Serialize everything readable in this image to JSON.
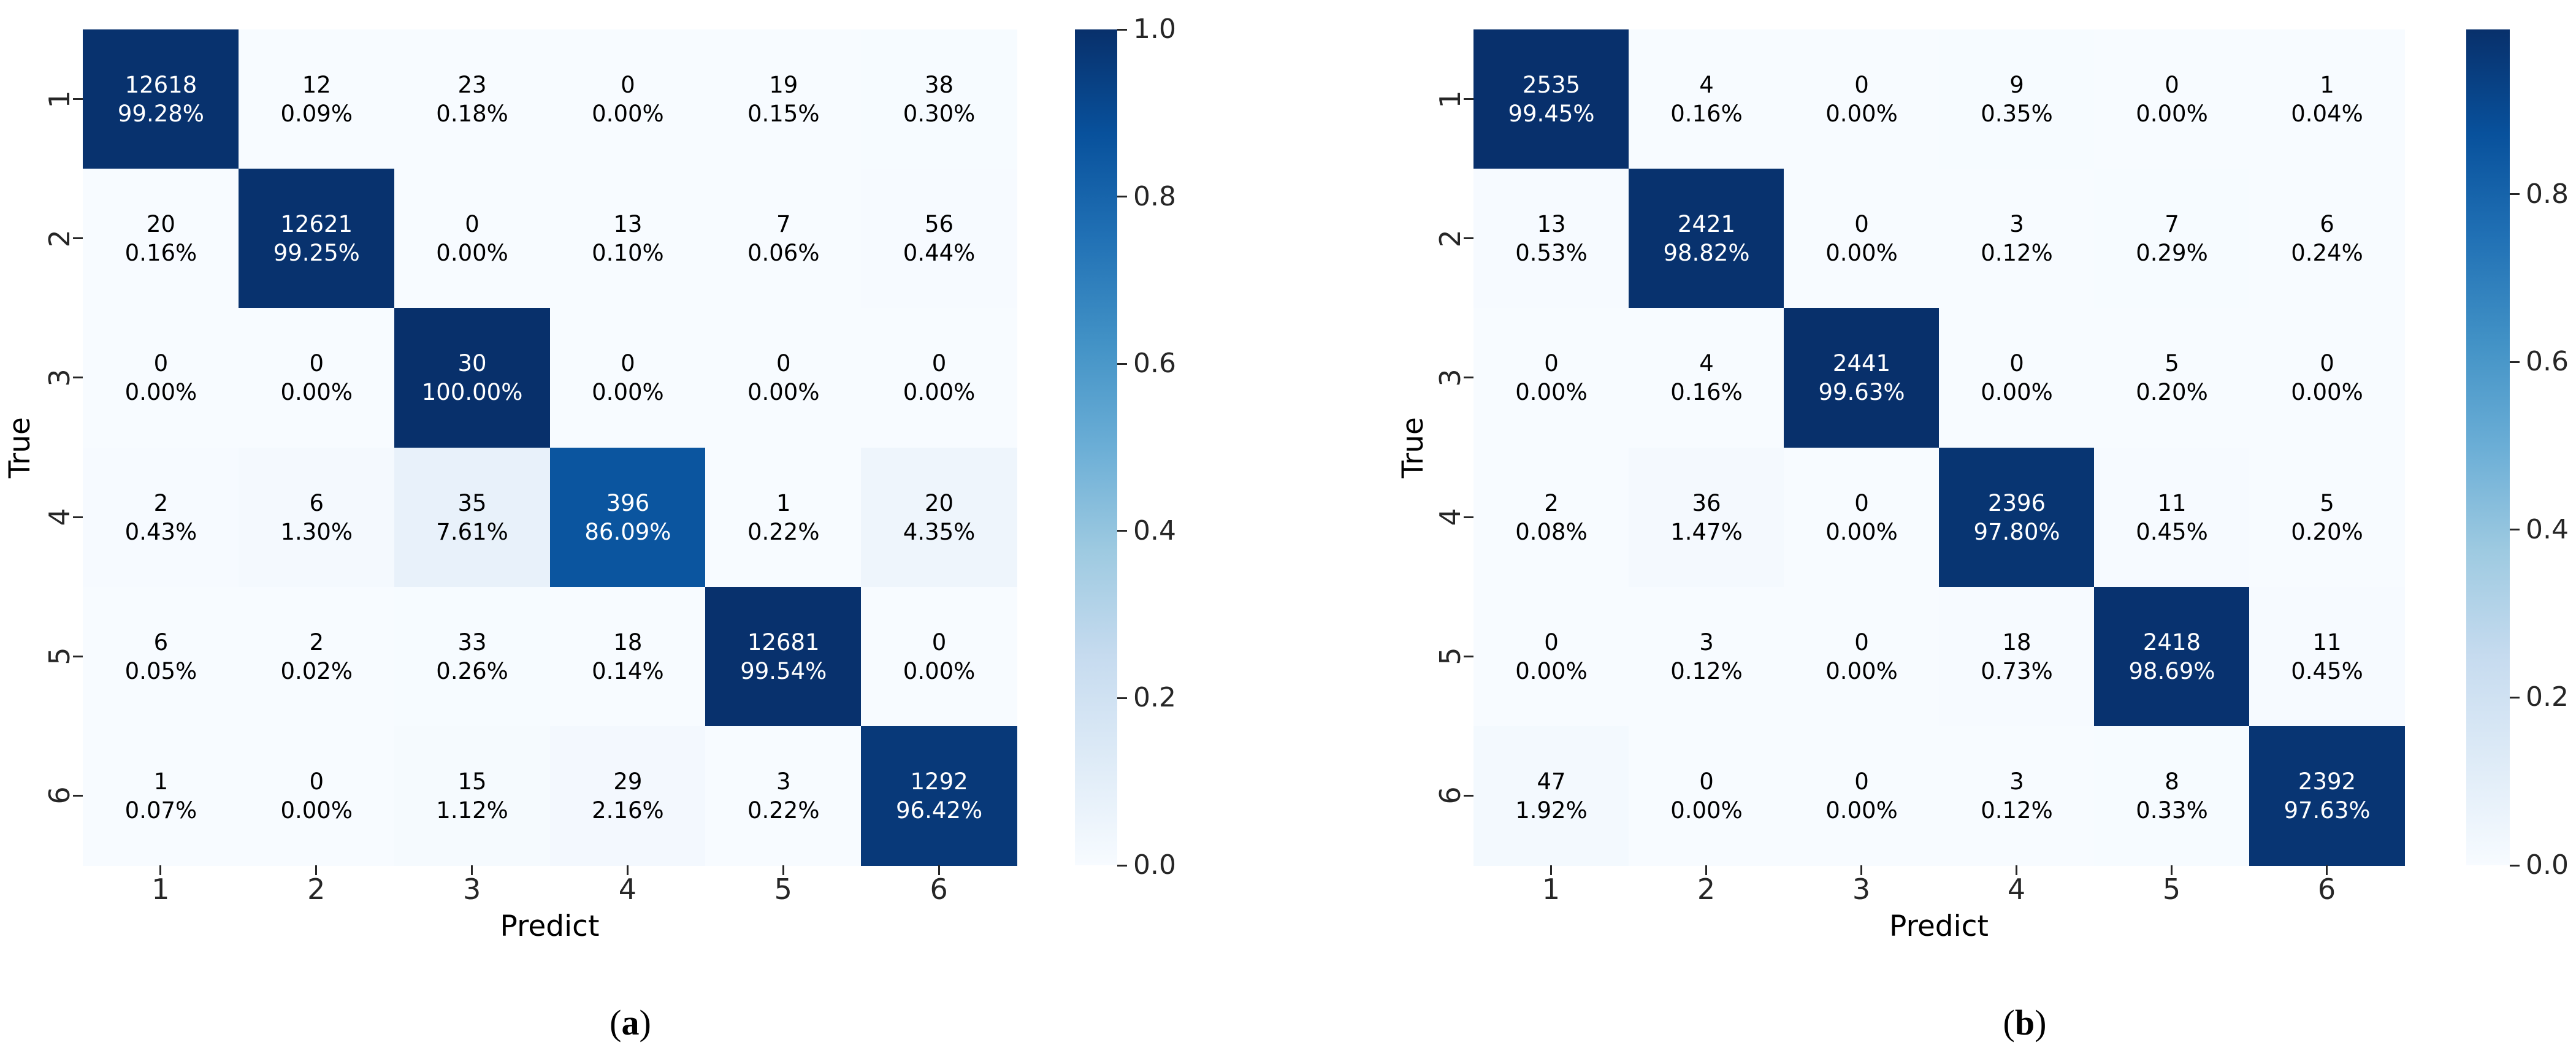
{
  "figure": {
    "description": "Two row-normalized confusion matrices rendered as Blues heatmaps",
    "colors": {
      "background": "#ffffff",
      "colormap": "Blues",
      "colormap_anchors": [
        "#f7fbff",
        "#deebf7",
        "#c6dbef",
        "#9ecae1",
        "#6baed6",
        "#4292c6",
        "#2171b5",
        "#08519c",
        "#08306b"
      ],
      "annot_text_dark": "#000000",
      "annot_text_light": "#ffffff",
      "tick_color": "#262626"
    }
  },
  "chart_data": [
    {
      "type": "heatmap",
      "panel": "a",
      "caption_open": "(",
      "caption_letter": "a",
      "caption_close": ")",
      "xlabel": "Predict",
      "ylabel": "True",
      "x_ticklabels": [
        "1",
        "2",
        "3",
        "4",
        "5",
        "6"
      ],
      "y_ticklabels": [
        "1",
        "2",
        "3",
        "4",
        "5",
        "6"
      ],
      "counts": [
        [
          12618,
          12,
          23,
          0,
          19,
          38
        ],
        [
          20,
          12621,
          0,
          13,
          7,
          56
        ],
        [
          0,
          0,
          30,
          0,
          0,
          0
        ],
        [
          2,
          6,
          35,
          396,
          1,
          20
        ],
        [
          6,
          2,
          33,
          18,
          12681,
          0
        ],
        [
          1,
          0,
          15,
          29,
          3,
          1292
        ]
      ],
      "row_percentages": [
        [
          99.28,
          0.09,
          0.18,
          0.0,
          0.15,
          0.3
        ],
        [
          0.16,
          99.25,
          0.0,
          0.1,
          0.06,
          0.44
        ],
        [
          0.0,
          0.0,
          100.0,
          0.0,
          0.0,
          0.0
        ],
        [
          0.43,
          1.3,
          7.61,
          86.09,
          0.22,
          4.35
        ],
        [
          0.05,
          0.02,
          0.26,
          0.14,
          99.54,
          0.0
        ],
        [
          0.07,
          0.0,
          1.12,
          2.16,
          0.22,
          96.42
        ]
      ],
      "vmin": 0.0,
      "vmax": 1.0,
      "colorbar_ticks": [
        1.0,
        0.8,
        0.6,
        0.4,
        0.2,
        0.0
      ],
      "legend_position": "right",
      "grid": false
    },
    {
      "type": "heatmap",
      "panel": "b",
      "caption_open": "(",
      "caption_letter": "b",
      "caption_close": ")",
      "xlabel": "Predict",
      "ylabel": "True",
      "x_ticklabels": [
        "1",
        "2",
        "3",
        "4",
        "5",
        "6"
      ],
      "y_ticklabels": [
        "1",
        "2",
        "3",
        "4",
        "5",
        "6"
      ],
      "counts": [
        [
          2535,
          4,
          0,
          9,
          0,
          1
        ],
        [
          13,
          2421,
          0,
          3,
          7,
          6
        ],
        [
          0,
          4,
          2441,
          0,
          5,
          0
        ],
        [
          2,
          36,
          0,
          2396,
          11,
          5
        ],
        [
          0,
          3,
          0,
          18,
          2418,
          11
        ],
        [
          47,
          0,
          0,
          3,
          8,
          2392
        ]
      ],
      "row_percentages": [
        [
          99.45,
          0.16,
          0.0,
          0.35,
          0.0,
          0.04
        ],
        [
          0.53,
          98.82,
          0.0,
          0.12,
          0.29,
          0.24
        ],
        [
          0.0,
          0.16,
          99.63,
          0.0,
          0.2,
          0.0
        ],
        [
          0.08,
          1.47,
          0.0,
          97.8,
          0.45,
          0.2
        ],
        [
          0.0,
          0.12,
          0.0,
          0.73,
          98.69,
          0.45
        ],
        [
          1.92,
          0.0,
          0.0,
          0.12,
          0.33,
          97.63
        ]
      ],
      "vmin": 0.0,
      "vmax": 0.9963,
      "colorbar_ticks": [
        0.8,
        0.6,
        0.4,
        0.2,
        0.0
      ],
      "legend_position": "right",
      "grid": false
    }
  ]
}
